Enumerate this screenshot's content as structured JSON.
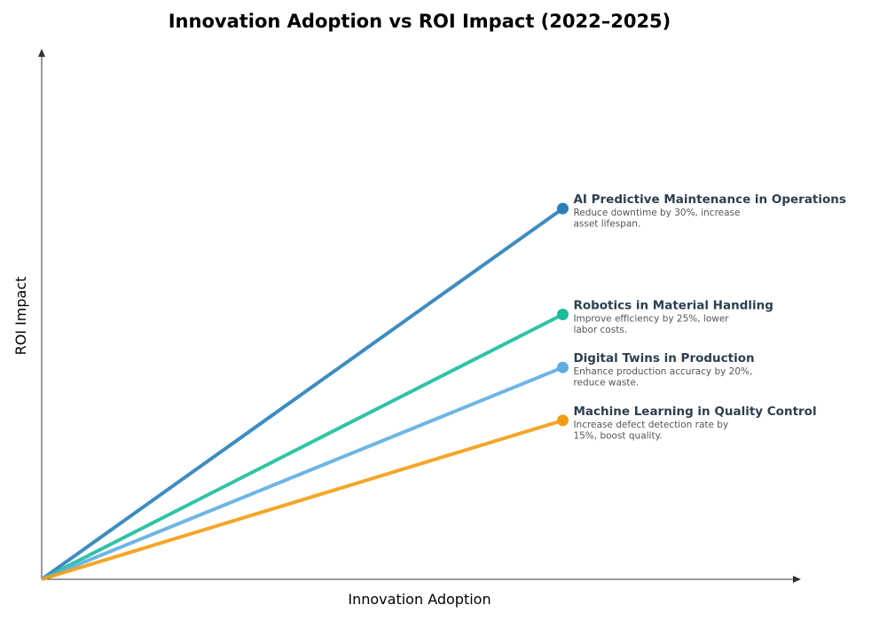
{
  "chart_data": {
    "type": "line",
    "title": "Innovation Adoption vs ROI Impact (2022–2025)",
    "xlabel": "Innovation Adoption",
    "ylabel": "ROI Impact",
    "xlim": [
      0,
      1.02
    ],
    "ylim": [
      0,
      1
    ],
    "grid": false,
    "series": [
      {
        "name": "AI Predictive Maintenance in Operations",
        "description": [
          "Reduce downtime by 30%, increase",
          "asset lifespan."
        ],
        "color": "#2980b9",
        "x": [
          0,
          0.7
        ],
        "y": [
          0,
          0.7
        ]
      },
      {
        "name": "Robotics in Material Handling",
        "description": [
          "Improve efficiency by 25%, lower",
          "labor costs."
        ],
        "color": "#1abc9c",
        "x": [
          0,
          0.7
        ],
        "y": [
          0,
          0.5
        ]
      },
      {
        "name": "Digital Twins in Production",
        "description": [
          "Enhance production accuracy by 20%,",
          "reduce waste."
        ],
        "color": "#5dade2",
        "x": [
          0,
          0.7
        ],
        "y": [
          0,
          0.4
        ]
      },
      {
        "name": "Machine Learning in Quality Control",
        "description": [
          "Increase defect detection rate by",
          "15%, boost quality."
        ],
        "color": "#f39c12",
        "x": [
          0,
          0.7
        ],
        "y": [
          0,
          0.3
        ]
      }
    ]
  }
}
